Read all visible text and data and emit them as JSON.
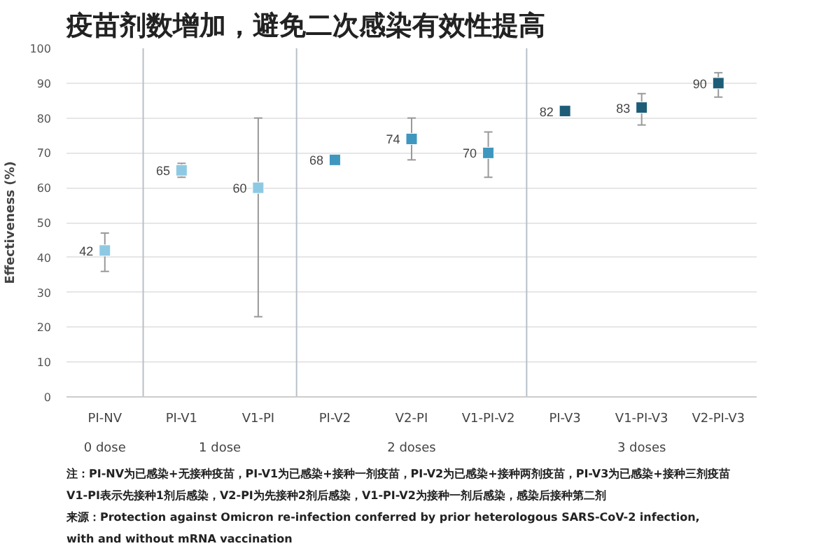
{
  "chart_data": {
    "type": "scatter",
    "title": "疫苗剂数增加，避免二次感染有效性提高",
    "ylabel": "Effectiveness (%)",
    "categories": [
      "PI-NV",
      "PI-V1",
      "V1-PI",
      "PI-V2",
      "V2-PI",
      "V1-PI-V2",
      "PI-V3",
      "V1-PI-V3",
      "V2-PI-V3"
    ],
    "values": [
      42,
      65,
      60,
      68,
      74,
      70,
      82,
      83,
      90
    ],
    "colors": [
      "#8ec9e3",
      "#8ec9e3",
      "#8ec9e3",
      "#3f97bf",
      "#3f97bf",
      "#3f97bf",
      "#1d5d78",
      "#1d5d78",
      "#1d5d78"
    ],
    "errors": [
      [
        36,
        47
      ],
      [
        63,
        67
      ],
      [
        23,
        80
      ],
      null,
      [
        68,
        80
      ],
      [
        63,
        76
      ],
      null,
      [
        78,
        87
      ],
      [
        86,
        93
      ]
    ],
    "data_labels": true,
    "marker": "square",
    "ylim": [
      0,
      100
    ],
    "yticks": [
      0,
      10,
      20,
      30,
      40,
      50,
      60,
      70,
      80,
      90,
      100
    ],
    "grid": "y",
    "annotations": [
      "0 dose",
      "1 dose",
      "2 doses",
      "3 doses",
      "注：PI-NV为已感染+无接种疫苗，PI-V1为已感染+接种一剂疫苗，PI-V2为已感染+接种两剂疫苗，PI-V3为已感染+接种三剂疫苗\nV1-PI表示先接种1剂后感染，V2-PI为先接种2剂后感染，V1-PI-V2为接种一剂后感染，感染后接种第二剂",
      "来源：Protection against Omicron re-infection conferred by prior heterologous SARS-CoV-2 infection,\nwith and without mRNA vaccination"
    ]
  }
}
